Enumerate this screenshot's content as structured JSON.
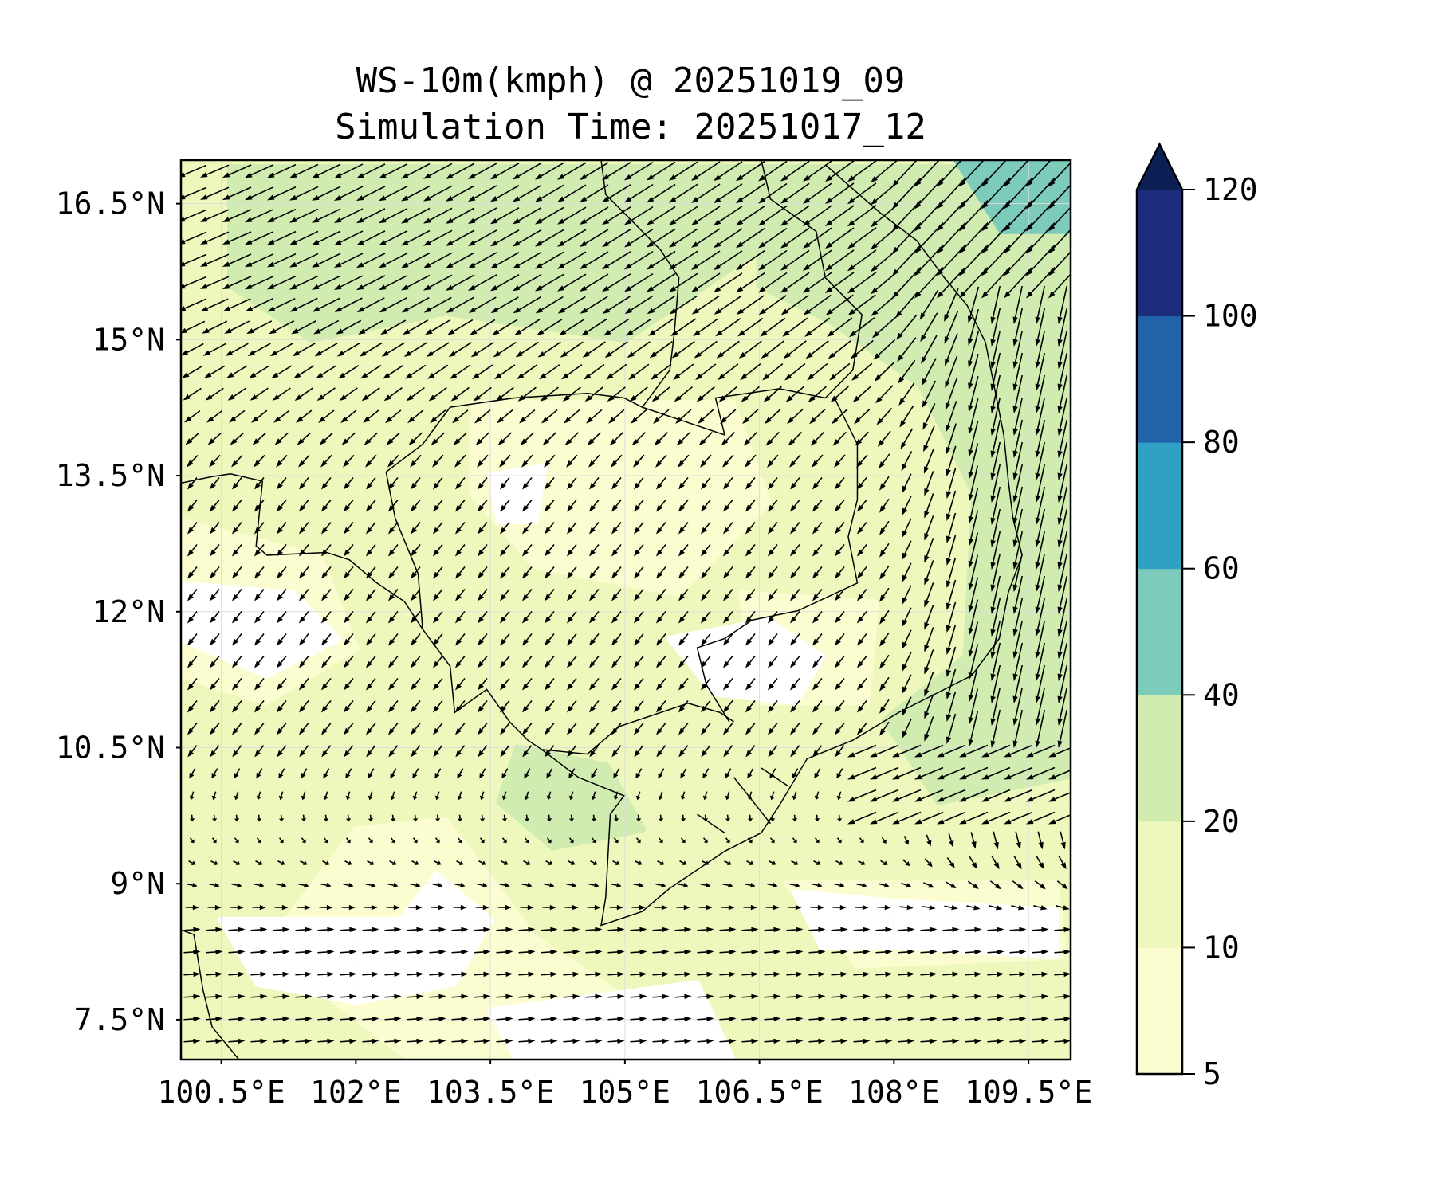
{
  "chart_data": {
    "type": "heatmap",
    "subtype": "filled-contour with wind vectors (map)",
    "title": "WS-10m(kmph) @ 20251019_09",
    "subtitle": "Simulation Time: 20251017_12",
    "xlabel": "",
    "ylabel": "",
    "xlim": [
      100.05,
      109.97
    ],
    "ylim": [
      7.06,
      16.98
    ],
    "x_ticks": [
      100.5,
      102,
      103.5,
      105,
      106.5,
      108,
      109.5
    ],
    "x_tick_labels": [
      "100.5°E",
      "102°E",
      "103.5°E",
      "105°E",
      "106.5°E",
      "108°E",
      "109.5°E"
    ],
    "y_ticks": [
      7.5,
      9,
      10.5,
      12,
      13.5,
      15,
      16.5
    ],
    "y_tick_labels": [
      "7.5°N",
      "9°N",
      "10.5°N",
      "12°N",
      "13.5°N",
      "15°N",
      "16.5°N"
    ],
    "grid": true,
    "colorbar": {
      "levels": [
        5,
        10,
        20,
        40,
        60,
        80,
        100,
        120
      ],
      "tick_labels": [
        "5",
        "10",
        "20",
        "40",
        "60",
        "80",
        "100",
        "120"
      ],
      "colors": [
        "#fbfdd0",
        "#eef8bd",
        "#d0ecb0",
        "#7ccbbb",
        "#2fa2c3",
        "#2262a8",
        "#1d2d7c"
      ],
      "extend_color": "#0b1f55",
      "extend": "max",
      "placement": "right"
    },
    "fields": {
      "dominant_speed_range_kmph": [
        10,
        20
      ],
      "max_speed_region": "northeast corner, 40-60 kmph",
      "calm_regions": "Gulf of Thailand south and central Cambodia, below 5 kmph",
      "wind_pattern": "Northeasterly in the north, northerly along the Vietnam coast, easterly-to-westerly weak flow in the south"
    }
  }
}
